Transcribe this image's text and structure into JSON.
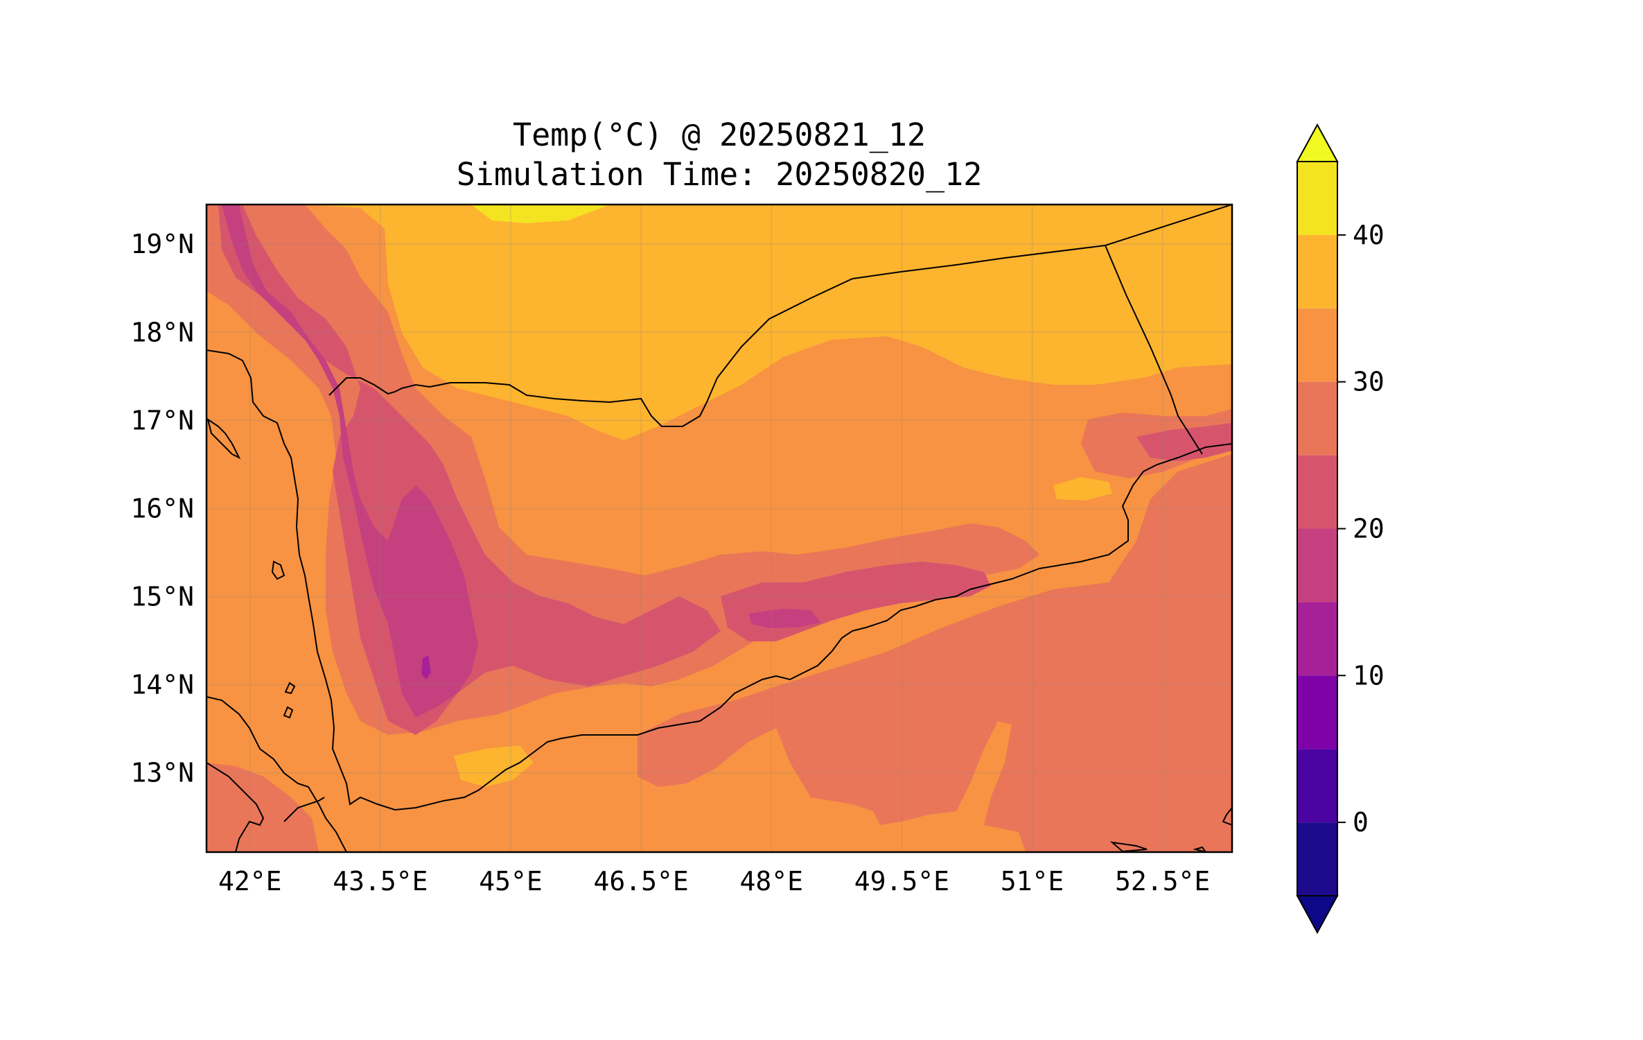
{
  "map": {
    "title": "Temp(°C) @ 20250821_12",
    "subtitle": "Simulation Time: 20250820_12",
    "lon_range": [
      41.5,
      53.3
    ],
    "lat_range": [
      12.1,
      19.45
    ],
    "x_ticks": [
      {
        "value": 42.0,
        "label": "42°E"
      },
      {
        "value": 43.5,
        "label": "43.5°E"
      },
      {
        "value": 45.0,
        "label": "45°E"
      },
      {
        "value": 46.5,
        "label": "46.5°E"
      },
      {
        "value": 48.0,
        "label": "48°E"
      },
      {
        "value": 49.5,
        "label": "49.5°E"
      },
      {
        "value": 51.0,
        "label": "51°E"
      },
      {
        "value": 52.5,
        "label": "52.5°E"
      }
    ],
    "y_ticks": [
      {
        "value": 19,
        "label": "19°N"
      },
      {
        "value": 18,
        "label": "18°N"
      },
      {
        "value": 17,
        "label": "17°N"
      },
      {
        "value": 16,
        "label": "16°N"
      },
      {
        "value": 15,
        "label": "15°N"
      },
      {
        "value": 14,
        "label": "14°N"
      },
      {
        "value": 13,
        "label": "13°N"
      }
    ],
    "gridlines": true,
    "colormap": "plasma"
  },
  "colorbar": {
    "levels": [
      -5,
      0,
      5,
      10,
      15,
      20,
      25,
      30,
      35,
      40,
      45
    ],
    "colors": [
      "#1e0a8c",
      "#4b03a1",
      "#7d03a8",
      "#a62098",
      "#c5407e",
      "#d6556d",
      "#e97659",
      "#f79342",
      "#fdb42f",
      "#f4e321"
    ],
    "under_color": "#0d0887",
    "over_color": "#f0f921",
    "extend": "both",
    "ticks": [
      {
        "value": 0,
        "label": "0"
      },
      {
        "value": 10,
        "label": "10"
      },
      {
        "value": 20,
        "label": "20"
      },
      {
        "value": 30,
        "label": "30"
      },
      {
        "value": 40,
        "label": "40"
      }
    ]
  }
}
